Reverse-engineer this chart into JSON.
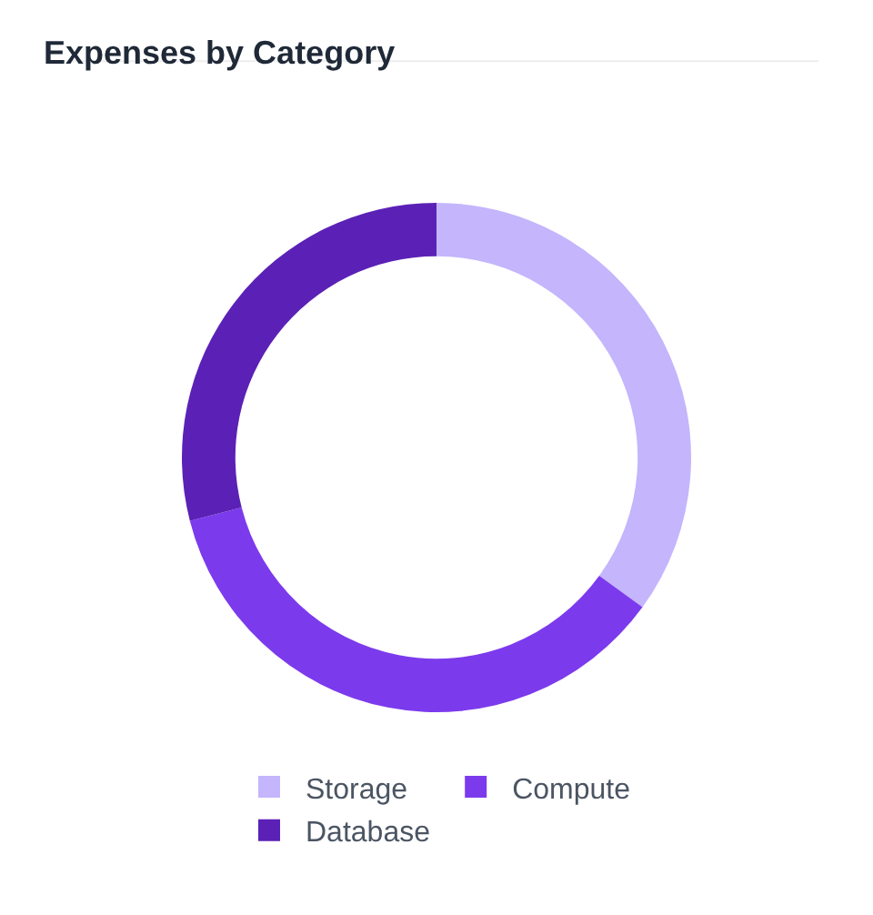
{
  "chart_data": {
    "type": "donut",
    "title": "Expenses by Category",
    "categories": [
      "Storage",
      "Compute",
      "Database"
    ],
    "values": [
      35,
      36,
      29
    ],
    "colors": [
      "#c4b5fd",
      "#7c3aed",
      "#5b21b6"
    ],
    "legend": "bottom"
  }
}
